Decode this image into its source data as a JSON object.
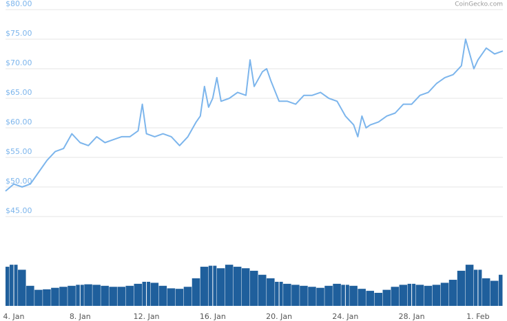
{
  "chart_data": {
    "type": "line",
    "credit": "CoinGecko.com",
    "color": "#7cb5ec",
    "grid": true,
    "xlim": [
      3.5,
      33.5
    ],
    "xticks": [
      {
        "value": 4,
        "label": "4. Jan"
      },
      {
        "value": 8,
        "label": "8. Jan"
      },
      {
        "value": 12,
        "label": "12. Jan"
      },
      {
        "value": 16,
        "label": "16. Jan"
      },
      {
        "value": 20,
        "label": "20. Jan"
      },
      {
        "value": 24,
        "label": "24. Jan"
      },
      {
        "value": 28,
        "label": "28. Jan"
      },
      {
        "value": 32,
        "label": "1. Feb"
      }
    ],
    "ylim": [
      40,
      80
    ],
    "yticks": [
      {
        "value": 45,
        "label": "$45.00"
      },
      {
        "value": 50,
        "label": "$50.00"
      },
      {
        "value": 55,
        "label": "$55.00"
      },
      {
        "value": 60,
        "label": "$60.00"
      },
      {
        "value": 65,
        "label": "$65.00"
      },
      {
        "value": 70,
        "label": "$70.00"
      },
      {
        "value": 75,
        "label": "$75.00"
      },
      {
        "value": 80,
        "label": "$80.00"
      }
    ],
    "x": [
      3.5,
      4.0,
      4.5,
      5.0,
      5.5,
      6.0,
      6.5,
      7.0,
      7.5,
      8.0,
      8.5,
      9.0,
      9.5,
      10.0,
      10.5,
      11.0,
      11.5,
      11.75,
      12.0,
      12.5,
      13.0,
      13.5,
      14.0,
      14.5,
      15.0,
      15.25,
      15.5,
      15.75,
      16.0,
      16.25,
      16.5,
      17.0,
      17.5,
      18.0,
      18.25,
      18.5,
      19.0,
      19.25,
      19.5,
      20.0,
      20.5,
      21.0,
      21.5,
      22.0,
      22.5,
      23.0,
      23.5,
      24.0,
      24.5,
      24.75,
      25.0,
      25.25,
      25.5,
      26.0,
      26.5,
      27.0,
      27.5,
      28.0,
      28.5,
      29.0,
      29.5,
      30.0,
      30.5,
      31.0,
      31.25,
      31.5,
      31.75,
      32.0,
      32.5,
      33.0,
      33.5
    ],
    "values": [
      49.3,
      50.5,
      50.0,
      50.5,
      52.5,
      54.5,
      56.0,
      56.5,
      59.0,
      57.5,
      57.0,
      58.5,
      57.5,
      58.0,
      58.5,
      58.5,
      59.5,
      64.0,
      59.0,
      58.5,
      59.0,
      58.5,
      57.0,
      58.5,
      61.0,
      62.0,
      67.0,
      63.5,
      65.0,
      68.5,
      64.5,
      65.0,
      66.0,
      65.5,
      71.5,
      67.0,
      69.5,
      70.0,
      68.0,
      64.5,
      64.5,
      64.0,
      65.5,
      65.5,
      66.0,
      65.0,
      64.5,
      62.0,
      60.5,
      58.5,
      62.0,
      60.0,
      60.5,
      61.0,
      62.0,
      62.5,
      64.0,
      64.0,
      65.5,
      66.0,
      67.5,
      68.5,
      69.0,
      70.5,
      75.0,
      72.5,
      70.0,
      71.5,
      73.5,
      72.5,
      73.0
    ],
    "volume": {
      "type": "bar",
      "color": "#1f5f9c",
      "ylim": [
        0,
        100
      ],
      "x": [
        3.5,
        4.0,
        4.5,
        5.0,
        5.5,
        6.0,
        6.5,
        7.0,
        7.5,
        8.0,
        8.5,
        9.0,
        9.5,
        10.0,
        10.5,
        11.0,
        11.5,
        12.0,
        12.5,
        13.0,
        13.5,
        14.0,
        14.5,
        15.0,
        15.5,
        16.0,
        16.5,
        17.0,
        17.5,
        18.0,
        18.5,
        19.0,
        19.5,
        20.0,
        20.5,
        21.0,
        21.5,
        22.0,
        22.5,
        23.0,
        23.5,
        24.0,
        24.5,
        25.0,
        25.5,
        26.0,
        26.5,
        27.0,
        27.5,
        28.0,
        28.5,
        29.0,
        29.5,
        30.0,
        30.5,
        31.0,
        31.5,
        32.0,
        32.5,
        33.0,
        33.5
      ],
      "values": [
        78,
        82,
        72,
        40,
        32,
        33,
        36,
        38,
        40,
        42,
        43,
        42,
        40,
        38,
        38,
        40,
        44,
        48,
        46,
        40,
        35,
        34,
        38,
        55,
        78,
        80,
        75,
        82,
        78,
        75,
        70,
        62,
        55,
        48,
        44,
        42,
        40,
        38,
        36,
        40,
        44,
        42,
        40,
        34,
        30,
        26,
        32,
        38,
        42,
        44,
        42,
        40,
        42,
        46,
        52,
        70,
        82,
        72,
        55,
        50,
        62
      ]
    }
  }
}
